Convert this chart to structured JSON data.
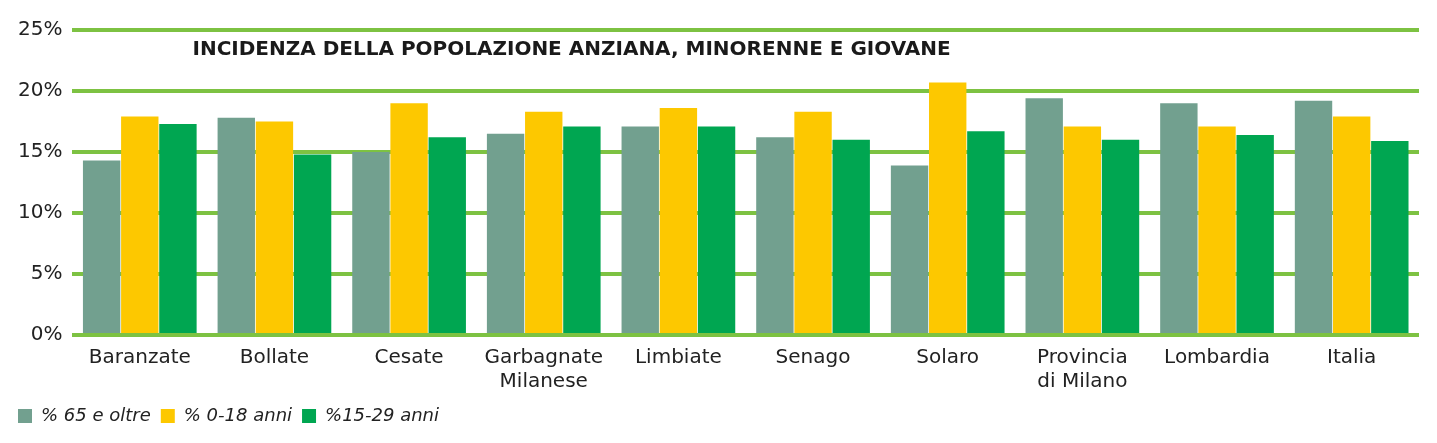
{
  "chart_data": {
    "type": "bar",
    "title": "INCIDENZA DELLA POPOLAZIONE ANZIANA, MINORENNE E GIOVANE",
    "categories": [
      "Baranzate",
      "Bollate",
      "Cesate",
      "Garbagnate Milanese",
      "Limbiate",
      "Senago",
      "Solaro",
      "Provincia di Milano",
      "Lombardia",
      "Italia"
    ],
    "series": [
      {
        "name": "% 65 e oltre",
        "color": "#72a08f",
        "values": [
          14.3,
          17.8,
          15.0,
          16.5,
          17.1,
          16.2,
          13.9,
          19.4,
          19.0,
          19.2
        ]
      },
      {
        "name": "% 0-18 anni",
        "color": "#fdc800",
        "values": [
          17.9,
          17.5,
          19.0,
          18.3,
          18.6,
          18.3,
          20.7,
          17.1,
          17.1,
          17.9
        ]
      },
      {
        "name": "%15-29 anni",
        "color": "#00a651",
        "values": [
          17.3,
          14.8,
          16.2,
          17.1,
          17.1,
          16.0,
          16.7,
          16.0,
          16.4,
          15.9
        ]
      }
    ],
    "ylim": [
      0,
      25
    ],
    "yticks": [
      {
        "value": 0,
        "label": "0%"
      },
      {
        "value": 5,
        "label": "5%"
      },
      {
        "value": 10,
        "label": "10%"
      },
      {
        "value": 15,
        "label": "15%"
      },
      {
        "value": 20,
        "label": "20%"
      },
      {
        "value": 25,
        "label": "25%"
      }
    ],
    "grid": "y",
    "legend": "bottom left"
  }
}
